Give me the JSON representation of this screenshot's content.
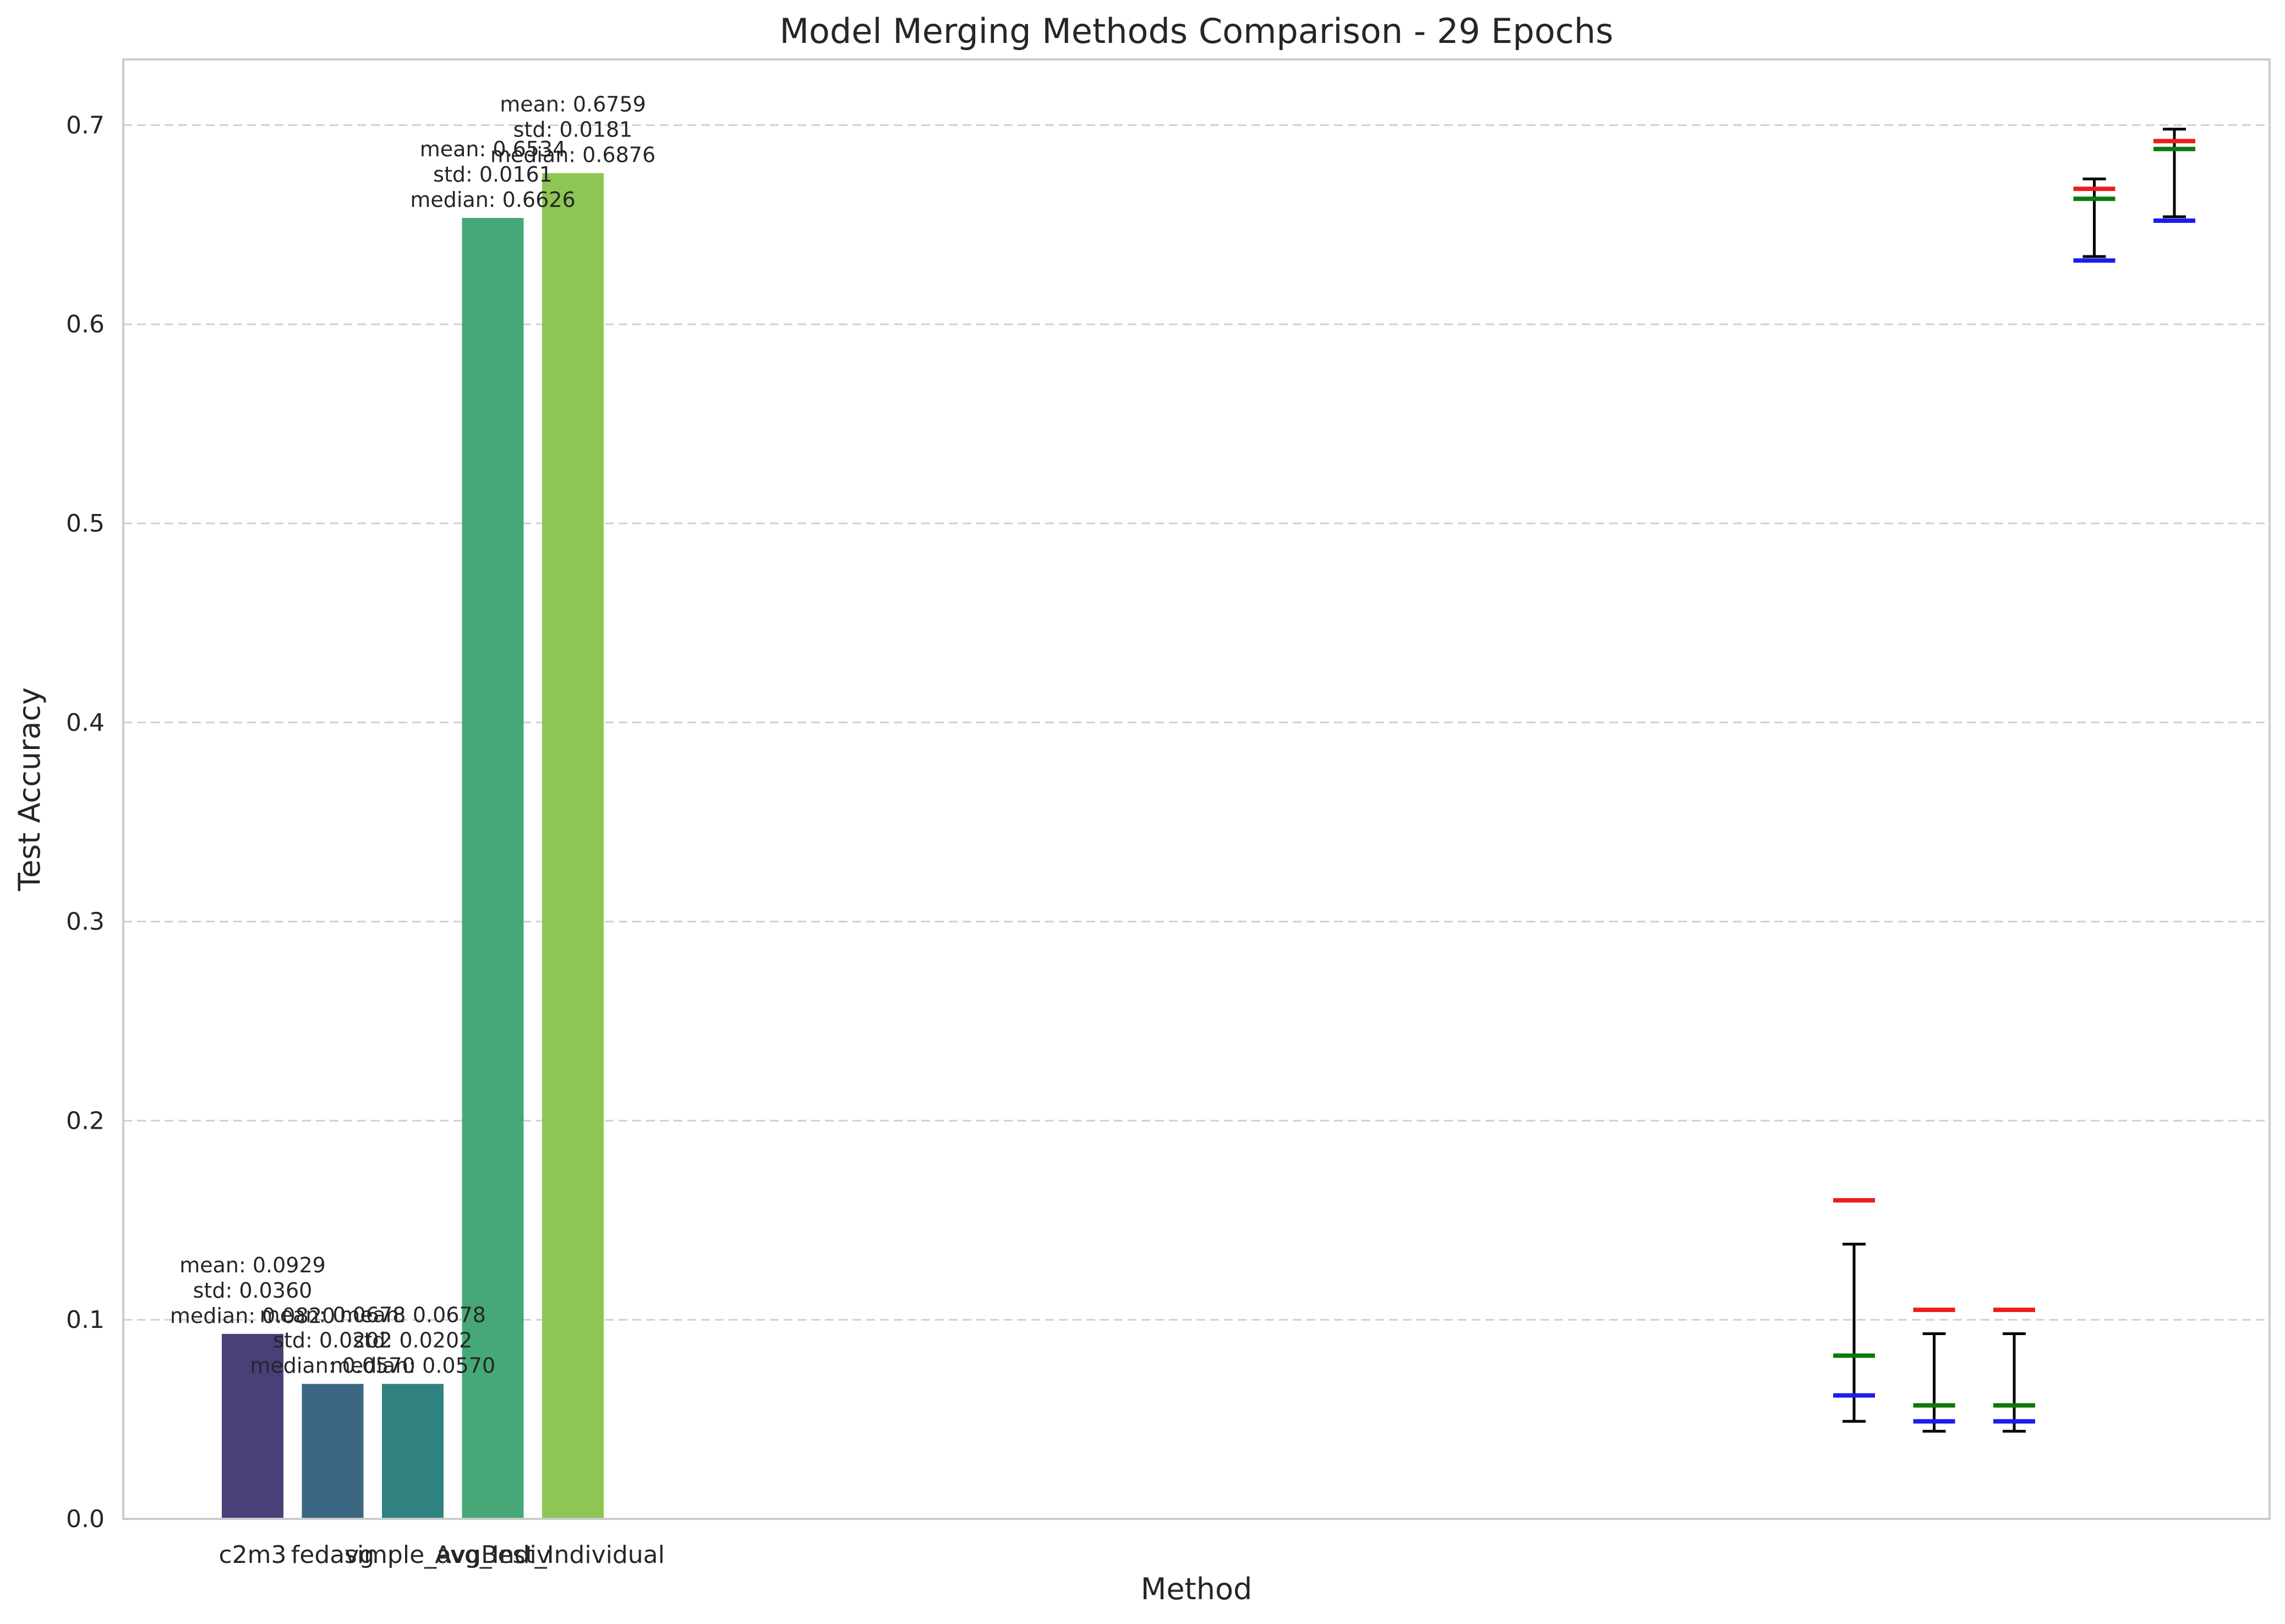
{
  "chart_data": {
    "type": "bar",
    "title": "Model Merging Methods Comparison - 29 Epochs",
    "xlabel": "Method",
    "ylabel": "Test Accuracy",
    "ylim": [
      0,
      0.733
    ],
    "yticks": [
      0.0,
      0.1,
      0.2,
      0.3,
      0.4,
      0.5,
      0.6,
      0.7
    ],
    "ytick_labels": [
      "0.0",
      "0.1",
      "0.2",
      "0.3",
      "0.4",
      "0.5",
      "0.6",
      "0.7"
    ],
    "grid": "y-dashed",
    "categories": [
      "c2m3",
      "fedavg",
      "simple_avg",
      "Avg_Indiv",
      "Best_Individual"
    ],
    "bar_colors": [
      "#4a3f78",
      "#3b6782",
      "#2f8280",
      "#46a876",
      "#8ec555"
    ],
    "values": [
      0.0929,
      0.0678,
      0.0678,
      0.6534,
      0.6759
    ],
    "bar_labels": [
      [
        "mean: 0.0929",
        "std: 0.0360",
        "median: 0.0820"
      ],
      [
        "mean: 0.0678",
        "std: 0.0202",
        "median: 0.0570"
      ],
      [
        "mean: 0.0678",
        "std: 0.0202",
        "median: 0.0570"
      ],
      [
        "mean: 0.6534",
        "std: 0.0161",
        "median: 0.6626"
      ],
      [
        "mean: 0.6759",
        "std: 0.0181",
        "median: 0.6876"
      ]
    ],
    "stat_markers": [
      {
        "max": 0.16,
        "median": 0.082,
        "min": 0.062,
        "err_low": 0.049,
        "err_high": 0.138
      },
      {
        "max": 0.105,
        "median": 0.057,
        "min": 0.049,
        "err_low": 0.044,
        "err_high": 0.093
      },
      {
        "max": 0.105,
        "median": 0.057,
        "min": 0.049,
        "err_low": 0.044,
        "err_high": 0.093
      },
      {
        "max": 0.668,
        "median": 0.663,
        "min": 0.632,
        "err_low": 0.634,
        "err_high": 0.673
      },
      {
        "max": 0.692,
        "median": 0.688,
        "min": 0.652,
        "err_low": 0.654,
        "err_high": 0.698
      }
    ],
    "marker_colors": {
      "max": "#ee1c1c",
      "median": "#0a7a0a",
      "min": "#1c1cee",
      "errorbar": "#000000"
    }
  }
}
